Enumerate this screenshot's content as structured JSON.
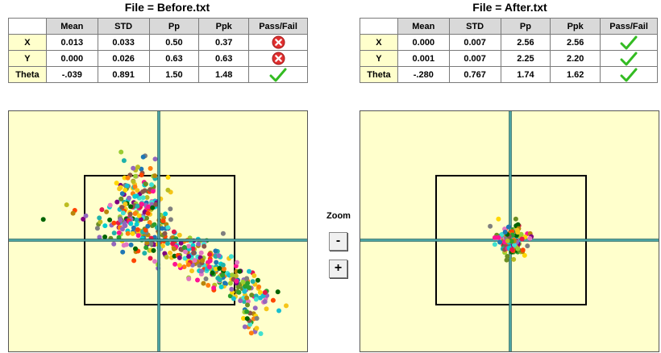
{
  "before": {
    "title": "File = Before.txt",
    "headers": [
      "Mean",
      "STD",
      "Pp",
      "Ppk",
      "Pass/Fail"
    ],
    "rows": [
      {
        "label": "X",
        "mean": "0.013",
        "std": "0.033",
        "pp": "0.50",
        "ppk": "0.37",
        "status": "fail"
      },
      {
        "label": "Y",
        "mean": "0.000",
        "std": "0.026",
        "pp": "0.63",
        "ppk": "0.63",
        "status": "fail"
      },
      {
        "label": "Theta",
        "mean": "-.039",
        "std": "0.891",
        "pp": "1.50",
        "ppk": "1.48",
        "status": "pass"
      }
    ]
  },
  "after": {
    "title": "File = After.txt",
    "headers": [
      "Mean",
      "STD",
      "Pp",
      "Ppk",
      "Pass/Fail"
    ],
    "rows": [
      {
        "label": "X",
        "mean": "0.000",
        "std": "0.007",
        "pp": "2.56",
        "ppk": "2.56",
        "status": "pass"
      },
      {
        "label": "Y",
        "mean": "0.001",
        "std": "0.007",
        "pp": "2.25",
        "ppk": "2.20",
        "status": "pass"
      },
      {
        "label": "Theta",
        "mean": "-.280",
        "std": "0.767",
        "pp": "1.74",
        "ppk": "1.62",
        "status": "pass"
      }
    ]
  },
  "zoom": {
    "label": "Zoom",
    "minus": "-",
    "plus": "+"
  },
  "icons": {
    "fail": "red-x-circle-icon",
    "pass": "green-check-icon"
  },
  "colors": {
    "plot_background": "#ffffcc",
    "header_background": "#d9d9d9",
    "row_label_background": "#ffffcc",
    "fail": "#e03030",
    "pass": "#33bb22",
    "crosshair": "#1a5e5e",
    "spec_box": "#000000"
  },
  "scatter_palette": [
    "#e6194b",
    "#ff7f0e",
    "#f5c518",
    "#2ca02c",
    "#17becf",
    "#1f77b4",
    "#9467bd",
    "#e377c2",
    "#8c564b",
    "#7f7f7f",
    "#bcbd22",
    "#40e0d0",
    "#ff1493",
    "#006400",
    "#b8860b",
    "#ffd700",
    "#00ced1",
    "#800080",
    "#ff4500",
    "#9acd32",
    "#6b8e23",
    "#20b2aa"
  ]
}
